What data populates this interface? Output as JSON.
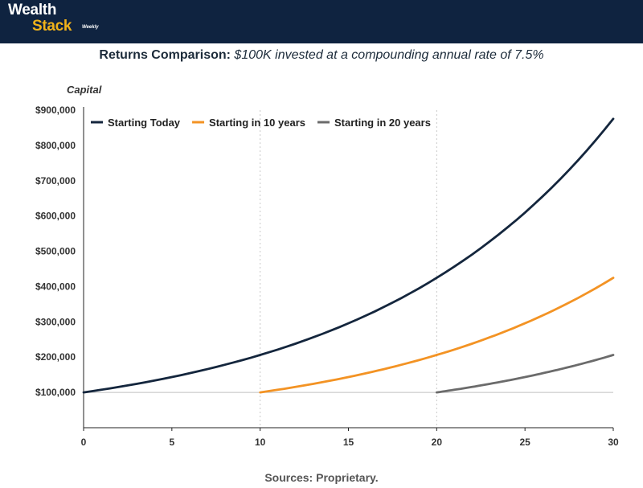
{
  "brand": {
    "line1": "Wealth",
    "line2": "Stack",
    "sub": "Weekly"
  },
  "title": {
    "bold": "Returns Comparison:",
    "italic": "$100K invested at a compounding annual rate of 7.5%"
  },
  "source": "Sources: Proprietary.",
  "colors": {
    "header_bg": "#0f2340",
    "brand_accent": "#f0b21a"
  },
  "chart_data": {
    "type": "line",
    "title": "Returns Comparison: $100K invested at a compounding annual rate of 7.5%",
    "xlabel": "",
    "ylabel": "Capital",
    "xlim": [
      0,
      30
    ],
    "ylim": [
      0,
      900000
    ],
    "x_ticks": [
      0,
      5,
      10,
      15,
      20,
      25,
      30
    ],
    "y_ticks": [
      100000,
      200000,
      300000,
      400000,
      500000,
      600000,
      700000,
      800000,
      900000
    ],
    "y_tick_labels": [
      "$100,000",
      "$200,000",
      "$300,000",
      "$400,000",
      "$500,000",
      "$600,000",
      "$700,000",
      "$800,000",
      "$900,000"
    ],
    "vertical_gridlines_at": [
      10,
      20
    ],
    "legend_position": "top-left",
    "series": [
      {
        "name": "Starting Today",
        "color": "#14263d",
        "x": [
          0,
          2,
          4,
          6,
          8,
          10,
          12,
          14,
          16,
          18,
          20,
          22,
          24,
          26,
          28,
          30
        ],
        "values": [
          100000,
          115563,
          133547,
          154330,
          178348,
          206103,
          238177,
          275244,
          318079,
          367580,
          424785,
          490893,
          567290,
          655574,
          757597,
          875496
        ]
      },
      {
        "name": "Starting in 10 years",
        "color": "#f39324",
        "x": [
          10,
          12,
          14,
          16,
          18,
          20,
          22,
          24,
          26,
          28,
          30
        ],
        "values": [
          100000,
          115563,
          133547,
          154330,
          178348,
          206103,
          238177,
          275244,
          318079,
          367580,
          424785
        ]
      },
      {
        "name": "Starting in 20 years",
        "color": "#6b6b6b",
        "x": [
          20,
          22,
          24,
          26,
          28,
          30
        ],
        "values": [
          100000,
          115563,
          133547,
          154330,
          178348,
          206103
        ]
      }
    ]
  }
}
